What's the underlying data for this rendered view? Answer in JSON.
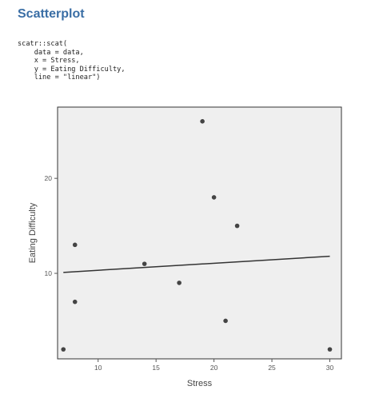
{
  "page": {
    "heading": "Scatterplot",
    "code_lines": [
      "scatr::scat(",
      "    data = data,",
      "    x = Stress,",
      "    y = Eating Difficulty,",
      "    line = \"linear\")"
    ]
  },
  "chart_data": {
    "type": "scatter",
    "xlabel": "Stress",
    "ylabel": "Eating Difficulty",
    "xlim": [
      6.5,
      31
    ],
    "ylim": [
      1,
      27.5
    ],
    "xticks": [
      10,
      15,
      20,
      25,
      30
    ],
    "yticks": [
      10,
      20
    ],
    "points": [
      {
        "x": 7,
        "y": 2
      },
      {
        "x": 8,
        "y": 13
      },
      {
        "x": 8,
        "y": 7
      },
      {
        "x": 14,
        "y": 11
      },
      {
        "x": 17,
        "y": 9
      },
      {
        "x": 19,
        "y": 26
      },
      {
        "x": 20,
        "y": 18
      },
      {
        "x": 21,
        "y": 5
      },
      {
        "x": 22,
        "y": 15
      },
      {
        "x": 30,
        "y": 2
      }
    ],
    "fit_line": {
      "x": [
        7,
        30
      ],
      "y": [
        10.1,
        11.8
      ]
    },
    "grid": false,
    "colors": {
      "panel": "#efefef",
      "point": "#444444",
      "line": "#333333",
      "frame": "#333333"
    }
  }
}
